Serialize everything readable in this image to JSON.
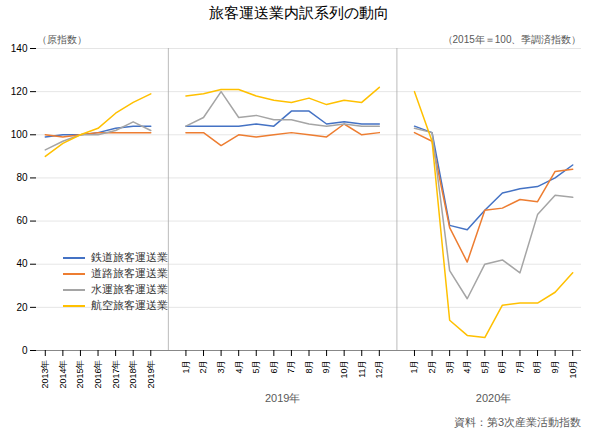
{
  "chart_data": {
    "type": "line",
    "title": "旅客運送業内訳系列の動向",
    "annotations": [
      "（原指数）",
      "（2015年＝100、季調済指数）"
    ],
    "source": "資料：第3次産業活動指数",
    "categories": [
      "2013年",
      "2014年",
      "2015年",
      "2016年",
      "2017年",
      "2018年",
      "2019年",
      null,
      "1月",
      "2月",
      "3月",
      "4月",
      "5月",
      "6月",
      "7月",
      "8月",
      "9月",
      "10月",
      "11月",
      "12月",
      null,
      "1月",
      "2月",
      "3月",
      "4月",
      "5月",
      "6月",
      "7月",
      "8月",
      "9月",
      "10月"
    ],
    "x_groups": [
      null,
      "2019年",
      "2020年"
    ],
    "series": [
      {
        "name": "鉄道旅客運送業",
        "color": "#4472C4",
        "values": [
          99,
          100,
          100,
          101,
          103,
          104,
          104,
          null,
          104,
          104,
          104,
          104,
          105,
          104,
          111,
          111,
          105,
          106,
          105,
          105,
          null,
          104,
          101,
          58,
          56,
          65,
          73,
          75,
          76,
          80,
          86
        ]
      },
      {
        "name": "道路旅客運送業",
        "color": "#ED7D31",
        "values": [
          100,
          99,
          100,
          101,
          101,
          101,
          101,
          null,
          101,
          101,
          95,
          100,
          99,
          100,
          101,
          100,
          99,
          105,
          100,
          101,
          null,
          101,
          97,
          57,
          41,
          65,
          66,
          70,
          69,
          83,
          84
        ]
      },
      {
        "name": "水運旅客運送業",
        "color": "#A5A5A5",
        "values": [
          93,
          97,
          100,
          100,
          102,
          106,
          102,
          null,
          104,
          108,
          120,
          108,
          109,
          107,
          107,
          105,
          104,
          105,
          104,
          104,
          null,
          103,
          101,
          37,
          24,
          40,
          42,
          36,
          63,
          72,
          71
        ]
      },
      {
        "name": "航空旅客運送業",
        "color": "#FFC000",
        "values": [
          90,
          96,
          100,
          103,
          110,
          115,
          119,
          null,
          118,
          119,
          121,
          121,
          118,
          116,
          115,
          117,
          114,
          116,
          115,
          122,
          null,
          120,
          97,
          14,
          7,
          6,
          21,
          22,
          22,
          27,
          36
        ]
      }
    ],
    "ylim": [
      0,
      140
    ],
    "yticks": [
      0,
      20,
      40,
      60,
      80,
      100,
      120,
      140
    ],
    "grid": true,
    "legend": "lower left"
  }
}
